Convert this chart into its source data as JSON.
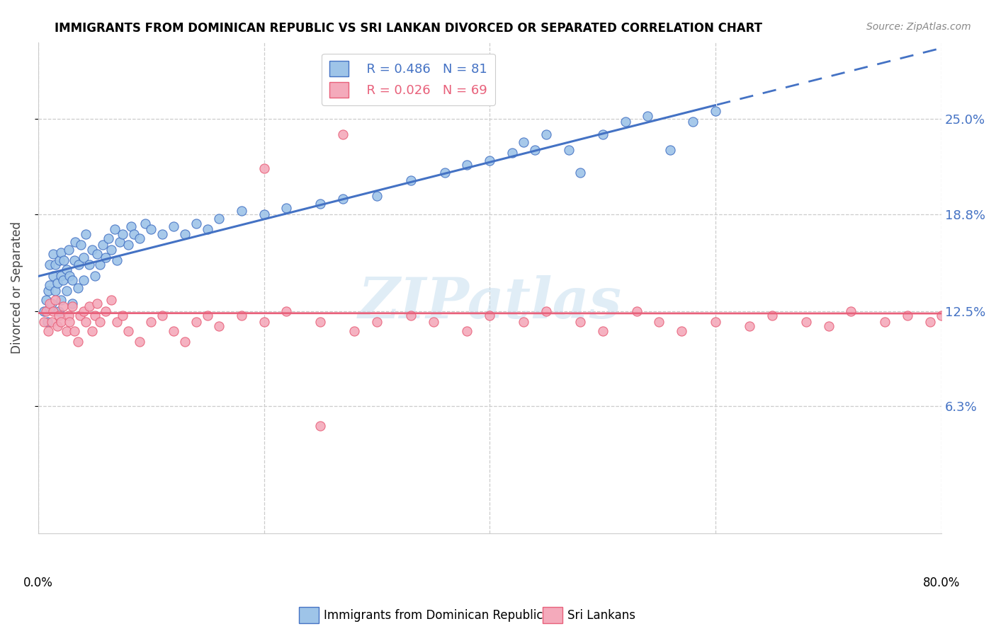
{
  "title": "IMMIGRANTS FROM DOMINICAN REPUBLIC VS SRI LANKAN DIVORCED OR SEPARATED CORRELATION CHART",
  "source": "Source: ZipAtlas.com",
  "ylabel": "Divorced or Separated",
  "ytick_labels": [
    "25.0%",
    "18.8%",
    "12.5%",
    "6.3%"
  ],
  "ytick_values": [
    0.25,
    0.188,
    0.125,
    0.063
  ],
  "xlim": [
    0.0,
    0.8
  ],
  "ylim": [
    -0.02,
    0.3
  ],
  "color_blue": "#9EC4E8",
  "color_pink": "#F4AABB",
  "color_blue_line": "#4472C4",
  "color_pink_line": "#E8607A",
  "watermark_text": "ZIPatlas",
  "blue_scatter_x": [
    0.005,
    0.007,
    0.008,
    0.009,
    0.01,
    0.01,
    0.01,
    0.012,
    0.013,
    0.013,
    0.015,
    0.015,
    0.017,
    0.018,
    0.019,
    0.02,
    0.02,
    0.02,
    0.022,
    0.023,
    0.025,
    0.025,
    0.027,
    0.028,
    0.03,
    0.03,
    0.032,
    0.033,
    0.035,
    0.036,
    0.038,
    0.04,
    0.04,
    0.042,
    0.045,
    0.048,
    0.05,
    0.052,
    0.055,
    0.057,
    0.06,
    0.062,
    0.065,
    0.068,
    0.07,
    0.072,
    0.075,
    0.08,
    0.082,
    0.085,
    0.09,
    0.095,
    0.1,
    0.11,
    0.12,
    0.13,
    0.14,
    0.15,
    0.16,
    0.18,
    0.2,
    0.22,
    0.25,
    0.27,
    0.3,
    0.33,
    0.36,
    0.38,
    0.4,
    0.42,
    0.43,
    0.44,
    0.45,
    0.47,
    0.48,
    0.5,
    0.52,
    0.54,
    0.56,
    0.58,
    0.6
  ],
  "blue_scatter_y": [
    0.125,
    0.132,
    0.118,
    0.138,
    0.127,
    0.142,
    0.155,
    0.13,
    0.148,
    0.162,
    0.138,
    0.155,
    0.143,
    0.125,
    0.158,
    0.132,
    0.148,
    0.163,
    0.145,
    0.158,
    0.138,
    0.152,
    0.165,
    0.148,
    0.13,
    0.145,
    0.158,
    0.17,
    0.14,
    0.155,
    0.168,
    0.145,
    0.16,
    0.175,
    0.155,
    0.165,
    0.148,
    0.162,
    0.155,
    0.168,
    0.16,
    0.172,
    0.165,
    0.178,
    0.158,
    0.17,
    0.175,
    0.168,
    0.18,
    0.175,
    0.172,
    0.182,
    0.178,
    0.175,
    0.18,
    0.175,
    0.182,
    0.178,
    0.185,
    0.19,
    0.188,
    0.192,
    0.195,
    0.198,
    0.2,
    0.21,
    0.215,
    0.22,
    0.223,
    0.228,
    0.235,
    0.23,
    0.24,
    0.23,
    0.215,
    0.24,
    0.248,
    0.252,
    0.23,
    0.248,
    0.255
  ],
  "pink_scatter_x": [
    0.005,
    0.007,
    0.009,
    0.01,
    0.012,
    0.013,
    0.015,
    0.017,
    0.018,
    0.02,
    0.022,
    0.025,
    0.027,
    0.028,
    0.03,
    0.032,
    0.035,
    0.037,
    0.04,
    0.042,
    0.045,
    0.048,
    0.05,
    0.052,
    0.055,
    0.06,
    0.065,
    0.07,
    0.075,
    0.08,
    0.09,
    0.1,
    0.11,
    0.12,
    0.13,
    0.14,
    0.15,
    0.16,
    0.18,
    0.2,
    0.22,
    0.25,
    0.28,
    0.3,
    0.33,
    0.35,
    0.38,
    0.4,
    0.43,
    0.45,
    0.48,
    0.5,
    0.53,
    0.55,
    0.57,
    0.6,
    0.63,
    0.65,
    0.68,
    0.7,
    0.72,
    0.75,
    0.77,
    0.79,
    0.8,
    0.27,
    0.29,
    0.2,
    0.25
  ],
  "pink_scatter_y": [
    0.118,
    0.125,
    0.112,
    0.13,
    0.118,
    0.125,
    0.132,
    0.115,
    0.122,
    0.118,
    0.128,
    0.112,
    0.122,
    0.118,
    0.128,
    0.112,
    0.105,
    0.122,
    0.125,
    0.118,
    0.128,
    0.112,
    0.122,
    0.13,
    0.118,
    0.125,
    0.132,
    0.118,
    0.122,
    0.112,
    0.105,
    0.118,
    0.122,
    0.112,
    0.105,
    0.118,
    0.122,
    0.115,
    0.122,
    0.118,
    0.125,
    0.118,
    0.112,
    0.118,
    0.122,
    0.118,
    0.112,
    0.122,
    0.118,
    0.125,
    0.118,
    0.112,
    0.125,
    0.118,
    0.112,
    0.118,
    0.115,
    0.122,
    0.118,
    0.115,
    0.125,
    0.118,
    0.122,
    0.118,
    0.122,
    0.24,
    0.265,
    0.218,
    0.05
  ]
}
